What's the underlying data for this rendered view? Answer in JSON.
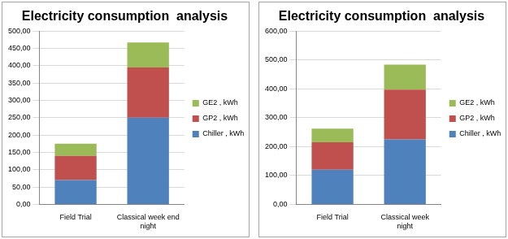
{
  "chart_data": [
    {
      "type": "bar",
      "title": "Electricity consumption  analysis",
      "stacked": true,
      "grid": true,
      "legend": "right",
      "categories": [
        "Field Trial",
        "Classical week end night"
      ],
      "series": [
        {
          "name": "Chiller , kWh",
          "color": "#4f81bd",
          "values": [
            70,
            250
          ]
        },
        {
          "name": "GP2 , kWh",
          "color": "#c0504d",
          "values": [
            70,
            145
          ]
        },
        {
          "name": "GE2 , kWh",
          "color": "#9bbb59",
          "values": [
            35,
            72
          ]
        }
      ],
      "ylim": [
        0,
        500
      ],
      "yticks": [
        {
          "value": 0,
          "label": "0,00"
        },
        {
          "value": 50,
          "label": "50,00"
        },
        {
          "value": 100,
          "label": "100,00"
        },
        {
          "value": 150,
          "label": "150,00"
        },
        {
          "value": 200,
          "label": "200,00"
        },
        {
          "value": 250,
          "label": "250,00"
        },
        {
          "value": 300,
          "label": "300,00"
        },
        {
          "value": 350,
          "label": "350,00"
        },
        {
          "value": 400,
          "label": "400,00"
        },
        {
          "value": 450,
          "label": "450,00"
        },
        {
          "value": 500,
          "label": "500,00"
        }
      ]
    },
    {
      "type": "bar",
      "title": "Electricity consumption  analysis",
      "stacked": true,
      "grid": true,
      "legend": "right",
      "categories": [
        "Field Trial",
        "Classical week night"
      ],
      "series": [
        {
          "name": "Chiller , kWh",
          "color": "#4f81bd",
          "values": [
            120,
            225
          ]
        },
        {
          "name": "GP2 , kWh",
          "color": "#c0504d",
          "values": [
            95,
            172
          ]
        },
        {
          "name": "GE2 , kWh",
          "color": "#9bbb59",
          "values": [
            47,
            87
          ]
        }
      ],
      "ylim": [
        0,
        600
      ],
      "yticks": [
        {
          "value": 0,
          "label": "0,00"
        },
        {
          "value": 100,
          "label": "100,00"
        },
        {
          "value": 200,
          "label": "200,00"
        },
        {
          "value": 300,
          "label": "300,00"
        },
        {
          "value": 400,
          "label": "400,00"
        },
        {
          "value": 500,
          "label": "500,00"
        },
        {
          "value": 600,
          "label": "600,00"
        }
      ]
    }
  ]
}
